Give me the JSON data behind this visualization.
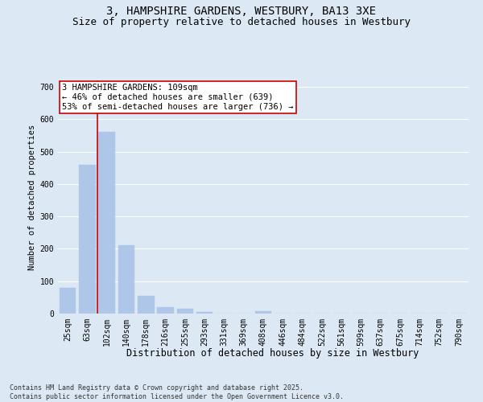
{
  "title": "3, HAMPSHIRE GARDENS, WESTBURY, BA13 3XE",
  "subtitle": "Size of property relative to detached houses in Westbury",
  "xlabel": "Distribution of detached houses by size in Westbury",
  "ylabel": "Number of detached properties",
  "categories": [
    "25sqm",
    "63sqm",
    "102sqm",
    "140sqm",
    "178sqm",
    "216sqm",
    "255sqm",
    "293sqm",
    "331sqm",
    "369sqm",
    "408sqm",
    "446sqm",
    "484sqm",
    "522sqm",
    "561sqm",
    "599sqm",
    "637sqm",
    "675sqm",
    "714sqm",
    "752sqm",
    "790sqm"
  ],
  "values": [
    80,
    460,
    560,
    210,
    55,
    20,
    15,
    5,
    0,
    0,
    8,
    0,
    0,
    0,
    0,
    0,
    0,
    0,
    0,
    0,
    0
  ],
  "bar_color": "#aec6e8",
  "bar_edge_color": "#aec6e8",
  "bg_color": "#dce9f5",
  "grid_color": "#ffffff",
  "vline_color": "#cc0000",
  "annotation_text": "3 HAMPSHIRE GARDENS: 109sqm\n← 46% of detached houses are smaller (639)\n53% of semi-detached houses are larger (736) →",
  "annotation_box_color": "#cc0000",
  "annotation_bg": "#ffffff",
  "ylim": [
    0,
    720
  ],
  "yticks": [
    0,
    100,
    200,
    300,
    400,
    500,
    600,
    700
  ],
  "footer": "Contains HM Land Registry data © Crown copyright and database right 2025.\nContains public sector information licensed under the Open Government Licence v3.0.",
  "title_fontsize": 10,
  "subtitle_fontsize": 9,
  "xlabel_fontsize": 8.5,
  "ylabel_fontsize": 7.5,
  "tick_fontsize": 7,
  "footer_fontsize": 6,
  "annot_fontsize": 7.5
}
